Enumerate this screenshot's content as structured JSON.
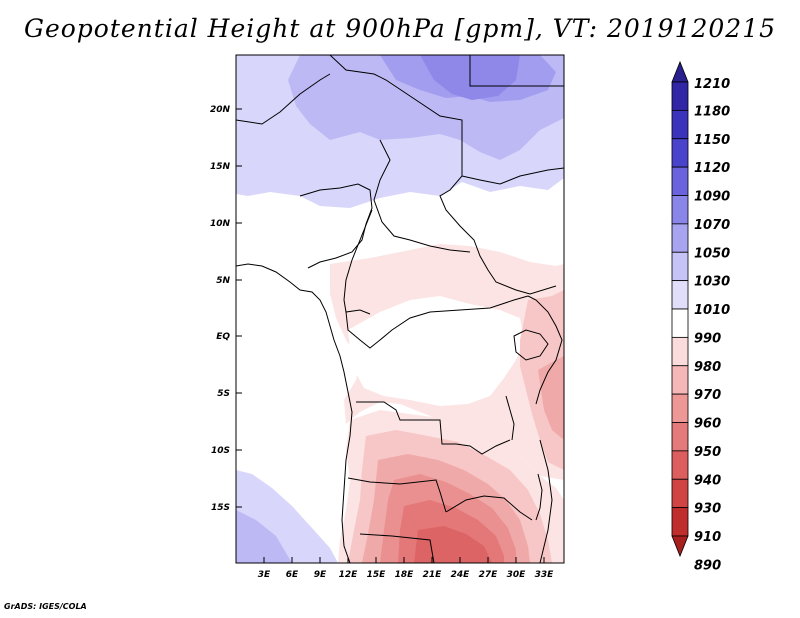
{
  "title": "Geopotential Height at 900hPa [gpm], VT: 2019120215",
  "footer": "GrADS: IGES/COLA",
  "map": {
    "lon_labels": [
      "3E",
      "6E",
      "9E",
      "12E",
      "15E",
      "18E",
      "21E",
      "24E",
      "27E",
      "30E",
      "33E"
    ],
    "lat_labels": [
      "20N",
      "15N",
      "10N",
      "5N",
      "EQ",
      "5S",
      "10S",
      "15S"
    ]
  },
  "colorbar": {
    "levels": [
      "1210",
      "1180",
      "1150",
      "1120",
      "1090",
      "1070",
      "1050",
      "1030",
      "1010",
      "990",
      "980",
      "970",
      "960",
      "950",
      "940",
      "930",
      "910",
      "890"
    ],
    "colors": [
      "#2a1f8f",
      "#3126a5",
      "#3b33bb",
      "#4a44cc",
      "#6a63dd",
      "#8a85e8",
      "#a9a4f0",
      "#c6c3f6",
      "#e0def9",
      "#ffffff",
      "#fadcdc",
      "#f5b7b7",
      "#ee9797",
      "#e57a7a",
      "#dc5e5e",
      "#d14444",
      "#c02d2d",
      "#a81f1f"
    ]
  }
}
